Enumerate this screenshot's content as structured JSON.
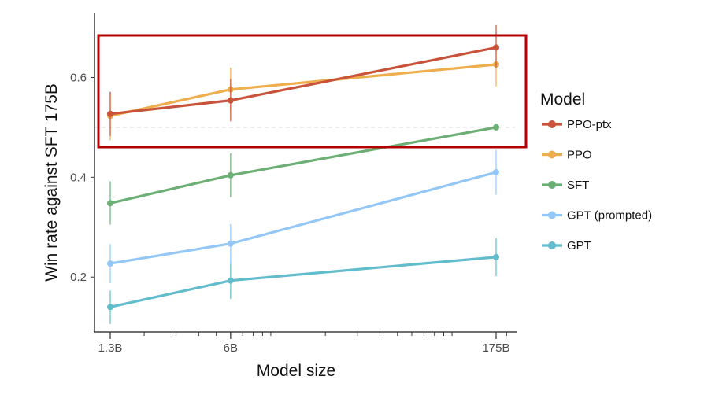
{
  "chart_data": {
    "type": "line",
    "xlabel": "Model size",
    "ylabel": "Win rate against SFT 175B",
    "x_scale": "log",
    "categories": [
      "1.3B",
      "6B",
      "175B"
    ],
    "x": [
      1.3,
      6,
      175
    ],
    "ylim": [
      0.09,
      0.73
    ],
    "yticks": [
      0.2,
      0.4,
      0.6
    ],
    "ytick_labels": [
      "0.2",
      "0.4",
      "0.6"
    ],
    "reference_line": 0.5,
    "legend_title": "Model",
    "legend_position": "right",
    "highlight_box": {
      "color": "#b30000"
    },
    "grid": false,
    "series": [
      {
        "name": "PPO-ptx",
        "color": "#c9533a",
        "values": [
          0.527,
          0.554,
          0.66
        ],
        "err": [
          [
            0.483,
            0.571
          ],
          [
            0.512,
            0.597
          ],
          [
            0.618,
            0.705
          ]
        ]
      },
      {
        "name": "PPO",
        "color": "#efae4d",
        "values": [
          0.523,
          0.576,
          0.626
        ],
        "err": [
          [
            0.474,
            0.571
          ],
          [
            0.534,
            0.62
          ],
          [
            0.582,
            0.668
          ]
        ]
      },
      {
        "name": "SFT",
        "color": "#6caf75",
        "values": [
          0.348,
          0.404,
          0.5
        ],
        "err": [
          [
            0.305,
            0.392
          ],
          [
            0.36,
            0.448
          ],
          [
            0.5,
            0.5
          ]
        ]
      },
      {
        "name": "GPT (prompted)",
        "color": "#93c7f7",
        "values": [
          0.227,
          0.267,
          0.41
        ],
        "err": [
          [
            0.188,
            0.266
          ],
          [
            0.226,
            0.306
          ],
          [
            0.365,
            0.455
          ]
        ]
      },
      {
        "name": "GPT",
        "color": "#61bccb",
        "values": [
          0.14,
          0.193,
          0.24
        ],
        "err": [
          [
            0.106,
            0.173
          ],
          [
            0.156,
            0.232
          ],
          [
            0.202,
            0.278
          ]
        ]
      }
    ]
  }
}
